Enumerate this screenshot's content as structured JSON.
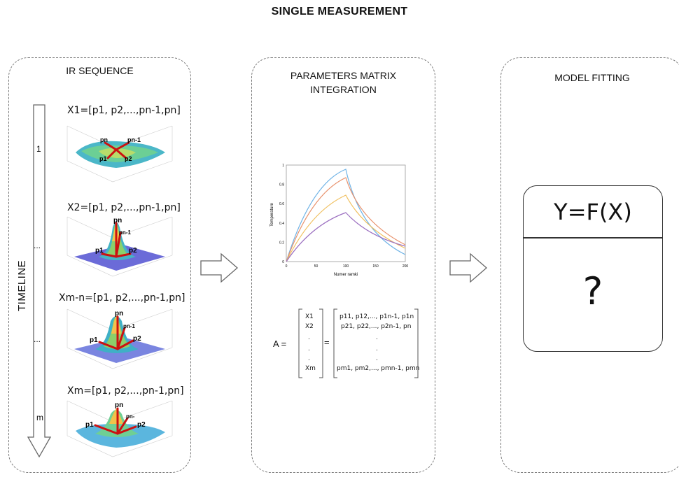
{
  "title": "SINGLE MEASUREMENT",
  "panels": {
    "ir": {
      "title": "IR SEQUENCE",
      "timeline_label": "TIMELINE",
      "ticks": [
        "1",
        "...",
        "...",
        "m"
      ],
      "frames": [
        {
          "equation": "X1=[p1, p2,...,pn-1,pn]",
          "labels": [
            "pn",
            "pn-1",
            "p1",
            "p2"
          ]
        },
        {
          "equation": "X2=[p1, p2,...,pn-1,pn]",
          "labels": [
            "pn",
            "pn-1",
            "p1",
            "p2"
          ]
        },
        {
          "equation": "Xm-n=[p1, p2,...,pn-1,pn]",
          "labels": [
            "pn",
            "pn-1",
            "p1",
            "p2"
          ]
        },
        {
          "equation": "Xm=[p1, p2,...,pn-1,pn]",
          "labels": [
            "pn",
            "pn-",
            "p1",
            "p2"
          ]
        }
      ]
    },
    "matrix": {
      "title_line1": "PARAMETERS MATRIX",
      "title_line2": "INTEGRATION",
      "chart": {
        "ylabel": "Temperature",
        "xlabel": "Numer ramki",
        "xticks": [
          "0",
          "50",
          "100",
          "150",
          "200"
        ],
        "yticks": [
          "0",
          "0.2",
          "0.4",
          "0.6",
          "0.8",
          "1"
        ]
      },
      "matrix_label": "A =",
      "equals": "=",
      "left_column": [
        "X1",
        "X2",
        ".",
        ".",
        ".",
        "Xm"
      ],
      "right_column": [
        "p11, p12,..., p1n-1, p1n",
        "p21, p22,..., p2n-1, pn",
        ".",
        ".",
        ".",
        "pm1, pm2,..., pmn-1, pmn"
      ]
    },
    "model": {
      "title": "MODEL FITTING",
      "equation": "Y=F(X)",
      "question": "?"
    }
  },
  "colors": {
    "curve1": "#6fb3e6",
    "curve2": "#e8906a",
    "curve3": "#f0c060",
    "curve4": "#9b6fc0",
    "arrow": "#cc1111"
  }
}
